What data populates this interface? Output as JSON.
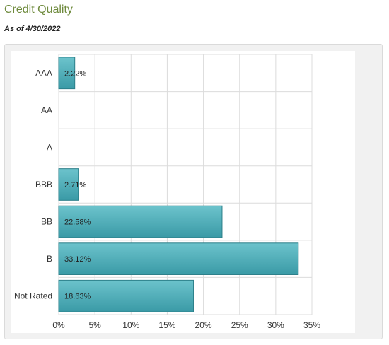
{
  "header": {
    "title": "Credit Quality",
    "as_of": "As of 4/30/2022"
  },
  "colors": {
    "title": "#6e8a3c",
    "bar_fill_top": "#6cc3cc",
    "bar_fill_bottom": "#3a9aa6",
    "bar_stroke": "#2c7f89",
    "grid": "#dcdcdc"
  },
  "chart_data": {
    "type": "bar",
    "orientation": "horizontal",
    "categories": [
      "AAA",
      "AA",
      "A",
      "BBB",
      "BB",
      "B",
      "Not Rated"
    ],
    "values": [
      2.22,
      null,
      null,
      2.71,
      22.58,
      33.12,
      18.63
    ],
    "data_labels": [
      "2.22%",
      "",
      "",
      "2.71%",
      "22.58%",
      "33.12%",
      "18.63%"
    ],
    "x_ticks": [
      0,
      5,
      10,
      15,
      20,
      25,
      30,
      35
    ],
    "x_tick_labels": [
      "0%",
      "5%",
      "10%",
      "15%",
      "20%",
      "25%",
      "30%",
      "35%"
    ],
    "xlim": [
      0,
      35
    ],
    "grid": true,
    "legend": "none"
  }
}
